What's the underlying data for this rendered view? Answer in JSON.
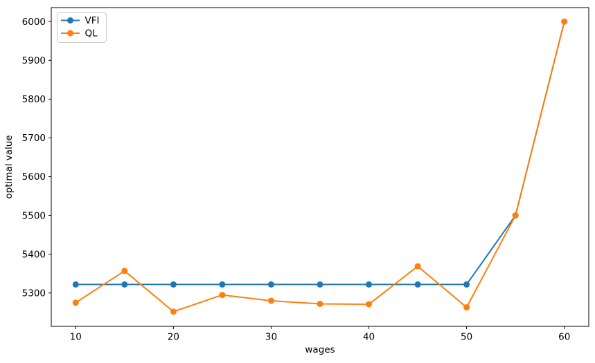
{
  "figure": {
    "background": "#ffffff",
    "spine_color": "#000000",
    "tick_color": "#000000",
    "legend_border_color": "#cccccc",
    "legend_background": "rgba(255,255,255,0.8)"
  },
  "chart_data": {
    "type": "line",
    "title": "",
    "xlabel": "wages",
    "ylabel": "optimal value",
    "x": [
      10,
      15,
      20,
      25,
      30,
      35,
      40,
      45,
      50,
      55,
      60
    ],
    "series": [
      {
        "name": "VFI",
        "color": "#1f77b4",
        "marker": "o",
        "values": [
          5322,
          5322,
          5322,
          5322,
          5322,
          5322,
          5322,
          5322,
          5322,
          5500,
          6000
        ]
      },
      {
        "name": "QL",
        "color": "#ff7f0e",
        "marker": "o",
        "values": [
          5275,
          5357,
          5252,
          5295,
          5280,
          5272,
          5271,
          5369,
          5263,
          5500,
          6000
        ]
      }
    ],
    "xticks": [
      10,
      20,
      30,
      40,
      50,
      60
    ],
    "yticks": [
      5300,
      5400,
      5500,
      5600,
      5700,
      5800,
      5900,
      6000
    ],
    "xlim": [
      7.5,
      62.5
    ],
    "ylim": [
      5214,
      6036
    ],
    "grid": false,
    "legend": {
      "position": "upper-left",
      "entries": [
        "VFI",
        "QL"
      ]
    }
  }
}
